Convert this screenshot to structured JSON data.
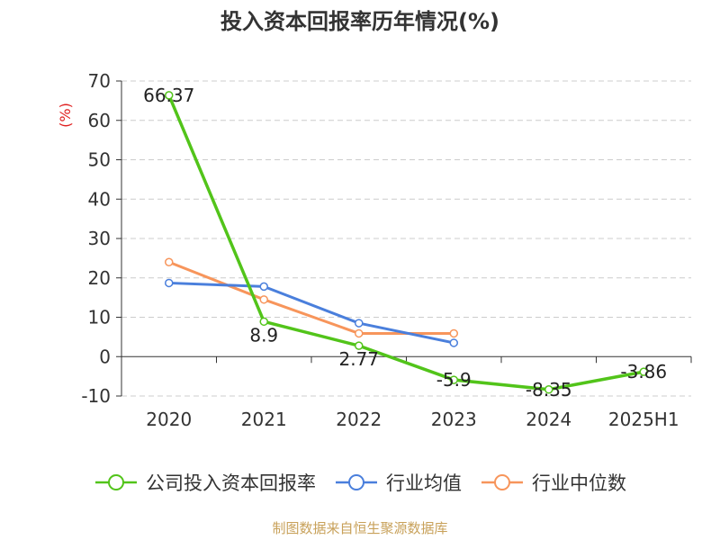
{
  "page": {
    "title": "投入资本回报率历年情况(%)",
    "source": "制图数据来自恒生聚源数据库"
  },
  "chart_data": {
    "type": "line",
    "title": "投入资本回报率历年情况(%)",
    "ylabel": "(%)",
    "xlabel": "",
    "categories": [
      "2020",
      "2021",
      "2022",
      "2023",
      "2024",
      "2025H1"
    ],
    "ylim": [
      -10,
      70
    ],
    "yticks": [
      -10,
      0,
      10,
      20,
      30,
      40,
      50,
      60,
      70
    ],
    "grid": true,
    "legend_position": "bottom",
    "series": [
      {
        "name": "公司投入资本回报率",
        "color": "#52c41a",
        "values": [
          66.37,
          8.9,
          2.77,
          -5.9,
          -8.35,
          -3.86
        ],
        "labels": [
          "66.37",
          "8.9",
          "2.77",
          "-5.9",
          "-8.35",
          "-3.86"
        ]
      },
      {
        "name": "行业均值",
        "color": "#4a7fdc",
        "values": [
          18.7,
          17.8,
          8.5,
          3.5,
          null,
          null
        ]
      },
      {
        "name": "行业中位数",
        "color": "#f7955b",
        "values": [
          24.0,
          14.5,
          5.9,
          5.9,
          null,
          null
        ]
      }
    ]
  }
}
